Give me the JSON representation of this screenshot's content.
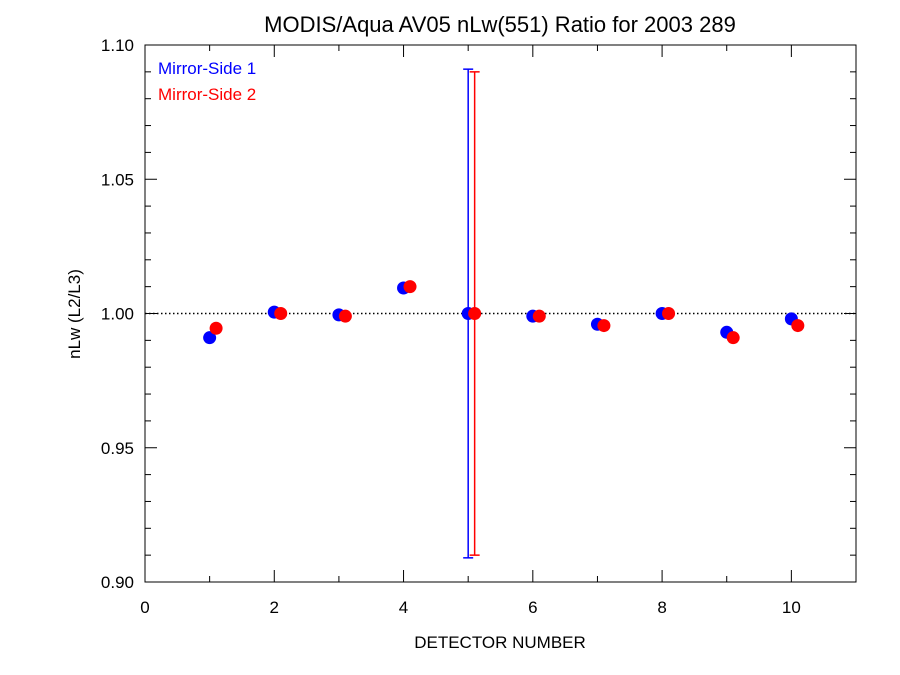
{
  "chart_data": {
    "type": "scatter",
    "title": "MODIS/Aqua AV05 nLw(551) Ratio for 2003 289",
    "xlabel": "DETECTOR NUMBER",
    "ylabel": "nLw (L2/L3)",
    "xlim": [
      0,
      11
    ],
    "ylim": [
      0.9,
      1.1
    ],
    "x_ticks": [
      0,
      2,
      4,
      6,
      8,
      10
    ],
    "x_tick_labels": [
      "0",
      "2",
      "4",
      "6",
      "8",
      "10"
    ],
    "y_ticks": [
      0.9,
      0.95,
      1.0,
      1.05,
      1.1
    ],
    "y_tick_labels": [
      "0.90",
      "0.95",
      "1.00",
      "1.05",
      "1.10"
    ],
    "reference_line": 1.0,
    "legend_position": "top-left",
    "series": [
      {
        "name": "Mirror-Side 1",
        "color": "#0000ff",
        "x": [
          1,
          2,
          3,
          4,
          5,
          6,
          7,
          8,
          9,
          10
        ],
        "y": [
          0.991,
          1.0005,
          0.9995,
          1.0095,
          1.0,
          0.999,
          0.996,
          1.0,
          0.993,
          0.998
        ],
        "error_bars": [
          {
            "x": 5,
            "low": 0.909,
            "high": 1.091
          }
        ]
      },
      {
        "name": "Mirror-Side 2",
        "color": "#ff0000",
        "x": [
          1.1,
          2.1,
          3.1,
          4.1,
          5.1,
          6.1,
          7.1,
          8.1,
          9.1,
          10.1
        ],
        "y": [
          0.9945,
          1.0,
          0.999,
          1.01,
          1.0,
          0.999,
          0.9955,
          1.0,
          0.991,
          0.9955
        ],
        "error_bars": [
          {
            "x": 5.1,
            "low": 0.91,
            "high": 1.09
          }
        ]
      }
    ]
  }
}
